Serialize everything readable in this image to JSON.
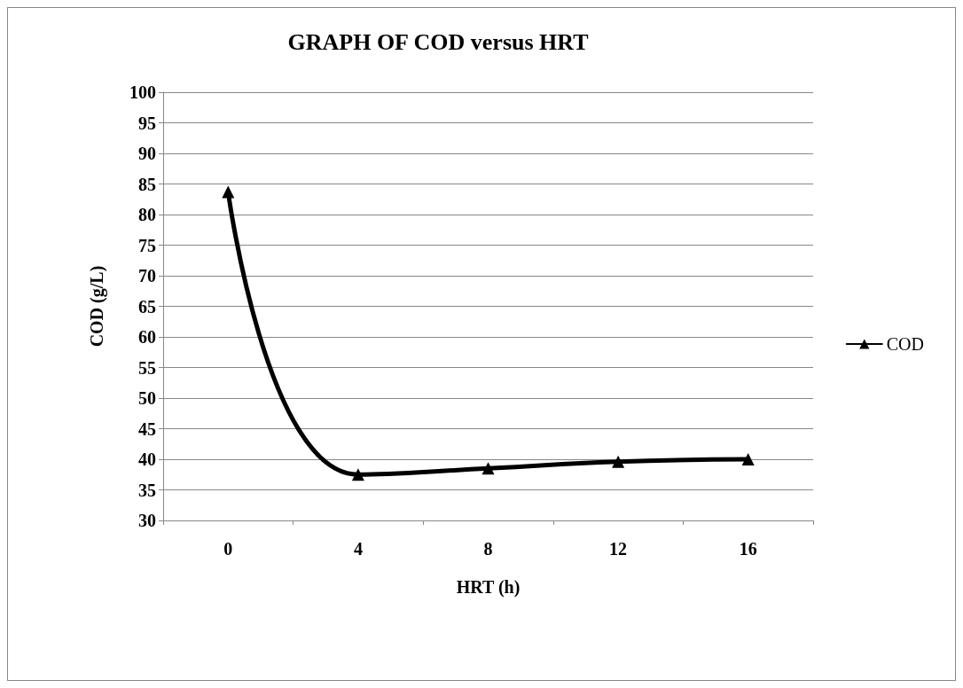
{
  "chart_data": {
    "type": "line",
    "title": "GRAPH OF COD versus HRT",
    "xlabel": "HRT (h)",
    "ylabel": "COD (g/L)",
    "categories": [
      "0",
      "4",
      "8",
      "12",
      "16"
    ],
    "series": [
      {
        "name": "COD",
        "color": "#000000",
        "values": [
          83.7,
          37.5,
          38.5,
          39.6,
          40
        ]
      }
    ],
    "ylim": [
      30,
      100
    ],
    "yticks": [
      30,
      35,
      40,
      45,
      50,
      55,
      60,
      65,
      70,
      75,
      80,
      85,
      90,
      95,
      100
    ],
    "grid": "y",
    "legend": "right",
    "marker": "triangle",
    "line_style": "solid"
  }
}
